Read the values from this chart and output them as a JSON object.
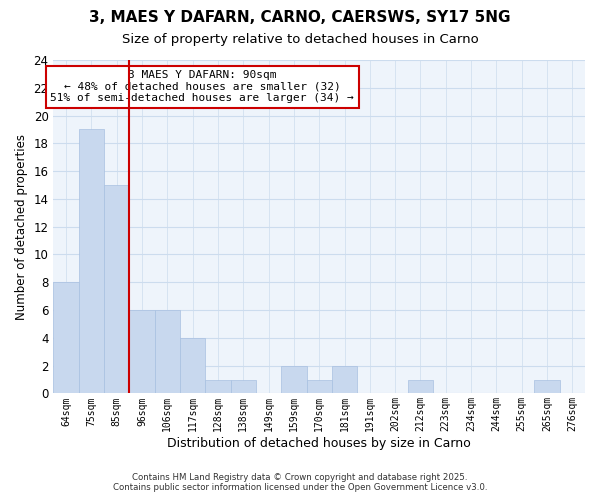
{
  "title": "3, MAES Y DAFARN, CARNO, CAERSWS, SY17 5NG",
  "subtitle": "Size of property relative to detached houses in Carno",
  "xlabel": "Distribution of detached houses by size in Carno",
  "ylabel": "Number of detached properties",
  "bar_color": "#c8d8ee",
  "bar_edge_color": "#a8c0e0",
  "grid_color": "#ccdcee",
  "plot_bg_color": "#eef4fb",
  "bins": [
    "64sqm",
    "75sqm",
    "85sqm",
    "96sqm",
    "106sqm",
    "117sqm",
    "128sqm",
    "138sqm",
    "149sqm",
    "159sqm",
    "170sqm",
    "181sqm",
    "191sqm",
    "202sqm",
    "212sqm",
    "223sqm",
    "234sqm",
    "244sqm",
    "255sqm",
    "265sqm",
    "276sqm"
  ],
  "values": [
    8,
    19,
    15,
    6,
    6,
    4,
    1,
    1,
    0,
    2,
    1,
    2,
    0,
    0,
    1,
    0,
    0,
    0,
    0,
    1,
    0
  ],
  "ylim": [
    0,
    24
  ],
  "yticks": [
    0,
    2,
    4,
    6,
    8,
    10,
    12,
    14,
    16,
    18,
    20,
    22,
    24
  ],
  "vline_color": "#cc0000",
  "annotation_title": "3 MAES Y DAFARN: 90sqm",
  "annotation_line1": "← 48% of detached houses are smaller (32)",
  "annotation_line2": "51% of semi-detached houses are larger (34) →",
  "annotation_box_color": "#ffffff",
  "annotation_box_edge": "#cc0000",
  "footer1": "Contains HM Land Registry data © Crown copyright and database right 2025.",
  "footer2": "Contains public sector information licensed under the Open Government Licence v3.0.",
  "bg_color": "#ffffff",
  "title_fontsize": 11,
  "subtitle_fontsize": 9.5
}
